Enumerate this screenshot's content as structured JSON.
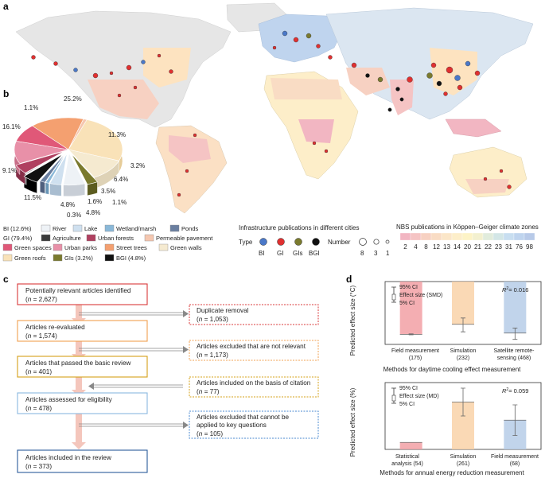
{
  "panels": {
    "a": "a",
    "b": "b",
    "c": "c",
    "d": "d"
  },
  "colors": {
    "bi": "#4a78c8",
    "gi": "#e03030",
    "gis": "#7a7a2e",
    "bgi": "#111111",
    "flow_red": "#d9383a",
    "flow_orange": "#f0a050",
    "flow_gold": "#d4a017",
    "flow_lightblue": "#8ab8e0",
    "flow_blue": "#2b5b9b"
  },
  "map": {
    "legend_title": "Infrastructure publications in different cities",
    "type_label": "Type",
    "types": [
      {
        "label": "BI",
        "color": "#4a78c8"
      },
      {
        "label": "GI",
        "color": "#e03030"
      },
      {
        "label": "GIs",
        "color": "#7a7a2e"
      },
      {
        "label": "BGI",
        "color": "#111111"
      }
    ],
    "number_label": "Number",
    "numbers": [
      "8",
      "3",
      "1"
    ],
    "climate_title": "NBS publications in Köppen–Geiger climate zones",
    "climate_values": [
      "2",
      "4",
      "8",
      "12",
      "13",
      "14",
      "20",
      "21",
      "22",
      "23",
      "31",
      "76",
      "98"
    ],
    "climate_colors": [
      "#f2b6c2",
      "#f5c4c4",
      "#f7d1c2",
      "#f9dcc4",
      "#fbe6c8",
      "#fdeec9",
      "#fdf3c6",
      "#f3f0cf",
      "#e1ecdc",
      "#d3e6e6",
      "#c8def0",
      "#bfd4ee",
      "#b8cae8"
    ]
  },
  "pie": {
    "groups": [
      {
        "label": "BI (12.6%)",
        "items": [
          "River",
          "Lake",
          "Wetland/marsh",
          "Ponds"
        ]
      },
      {
        "label": "GI (79.4%)",
        "items": [
          "Agriculture",
          "Urban forests",
          "Permeable pavement",
          "Green spaces",
          "Urban parks",
          "Street trees",
          "Green walls",
          "Green roofs"
        ]
      },
      {
        "label": "GIs (3.2%)",
        "items": []
      },
      {
        "label": "BGI (4.8%)",
        "items": []
      }
    ],
    "slice_labels": [
      "25.2%",
      "11.3%",
      "3.2%",
      "6.4%",
      "3.5%",
      "1.1%",
      "1.6%",
      "4.8%",
      "0.3%",
      "4.8%",
      "11.5%",
      "9.1%",
      "16.1%",
      "1.1%"
    ]
  },
  "chart_data": [
    {
      "type": "pie",
      "title": "",
      "slices": [
        {
          "label": "Green roofs",
          "value": 25.2
        },
        {
          "label": "Green walls",
          "value": 11.3
        },
        {
          "label": "GIs",
          "value": 3.2
        },
        {
          "label": "River",
          "value": 6.4
        },
        {
          "label": "Lake",
          "value": 3.5
        },
        {
          "label": "Wetland/marsh",
          "value": 1.1
        },
        {
          "label": "Ponds",
          "value": 1.6
        },
        {
          "label": "BGI",
          "value": 4.8
        },
        {
          "label": "Agriculture",
          "value": 0.3
        },
        {
          "label": "Urban forests",
          "value": 4.8
        },
        {
          "label": "Urban parks",
          "value": 11.5
        },
        {
          "label": "Green spaces",
          "value": 9.1
        },
        {
          "label": "Street trees",
          "value": 16.1
        },
        {
          "label": "Permeable pavement",
          "value": 1.1
        }
      ]
    },
    {
      "type": "bar",
      "title": "",
      "xlabel": "Methods for daytime cooling effect measurement",
      "ylabel": "Predicted effect size (°C)",
      "categories": [
        "Field measurement (175)",
        "Simulation (232)",
        "Satellite remote-sensing (468)"
      ],
      "values": [
        -2.1,
        -1.7,
        -2.05
      ],
      "ci_low": [
        -2.12,
        -2.0,
        -2.3
      ],
      "ci_high": [
        -2.08,
        -1.45,
        -1.85
      ],
      "ylim": [
        -2.5,
        0
      ],
      "r2_label": "= 0.016",
      "bar_colors": [
        "#f2a0a4",
        "#f9d2a8",
        "#b6cde8"
      ]
    },
    {
      "type": "bar",
      "title": "",
      "xlabel": "Methods for annual energy reduction measurement",
      "ylabel": "Predicted effect size (%)",
      "categories": [
        "Statistical analysis (54)",
        "Simulation (261)",
        "Field measurement (68)"
      ],
      "values": [
        0.25,
        1.7,
        1.05
      ],
      "ci_low": [
        0.25,
        1.2,
        0.5
      ],
      "ci_high": [
        0.25,
        2.2,
        1.6
      ],
      "ylim": [
        0,
        2.4
      ],
      "r2_label": "= 0.059",
      "bar_colors": [
        "#f2a0a4",
        "#f9d2a8",
        "#b6cde8"
      ]
    }
  ],
  "ci_legend_d1": [
    "95% CI",
    "Effect size (SMD)",
    "5% CI"
  ],
  "ci_legend_d2": [
    "95% CI",
    "Effect size (MD)",
    "5% CI"
  ],
  "flow": {
    "main": [
      {
        "title": "Potentially relevant articles identified",
        "n": "2,627",
        "color": "#d9383a"
      },
      {
        "title": "Articles re-evaluated",
        "n": "1,574",
        "color": "#f0a050"
      },
      {
        "title": "Articles that passed the basic review",
        "n": "401",
        "color": "#d4a017"
      },
      {
        "title": "Articles assessed for eligibility",
        "n": "478",
        "color": "#8ab8e0"
      },
      {
        "title": "Articles included in the review",
        "n": "373",
        "color": "#2b5b9b"
      }
    ],
    "side": [
      {
        "lines": [
          "Duplicate removal"
        ],
        "n": "1,053",
        "color": "#d9383a"
      },
      {
        "lines": [
          "Articles excluded that are not relevant"
        ],
        "n": "1,173",
        "color": "#f0a050"
      },
      {
        "lines": [
          "Articles included on the basis of citation"
        ],
        "n": "77",
        "color": "#d4a017"
      },
      {
        "lines": [
          "Articles excluded that cannot be",
          "applied to key questions"
        ],
        "n": "105",
        "color": "#4a8ad0"
      }
    ]
  }
}
